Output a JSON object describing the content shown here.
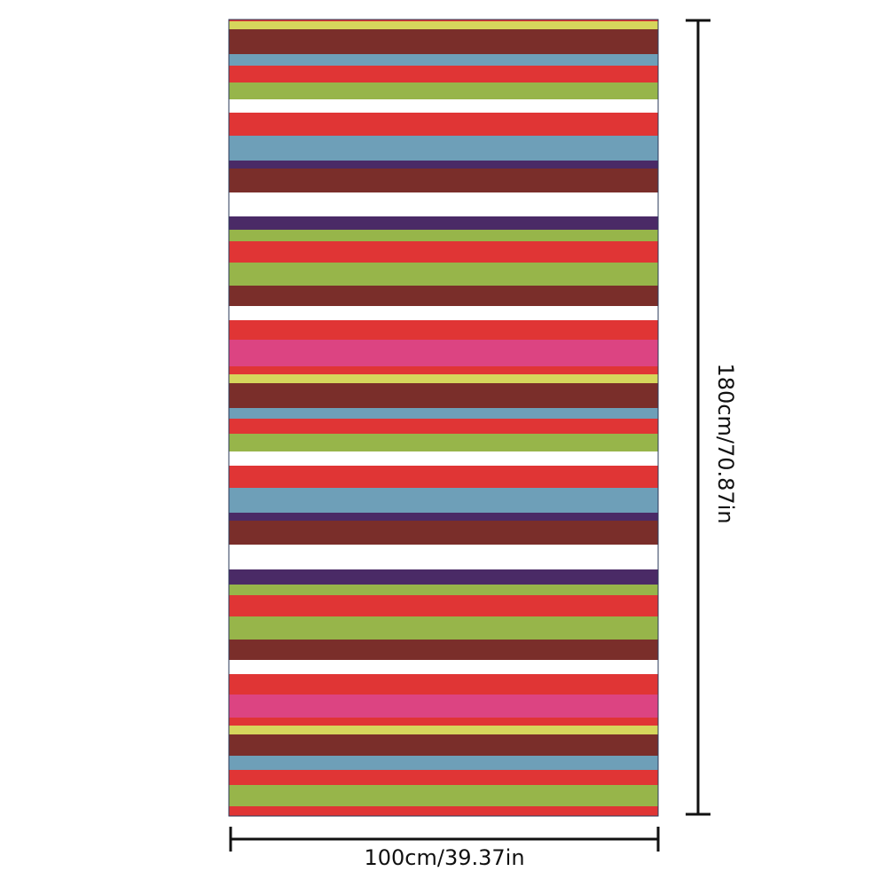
{
  "dimensions": {
    "width": "100cm/39.37in",
    "height": "180cm/70.87in"
  }
}
